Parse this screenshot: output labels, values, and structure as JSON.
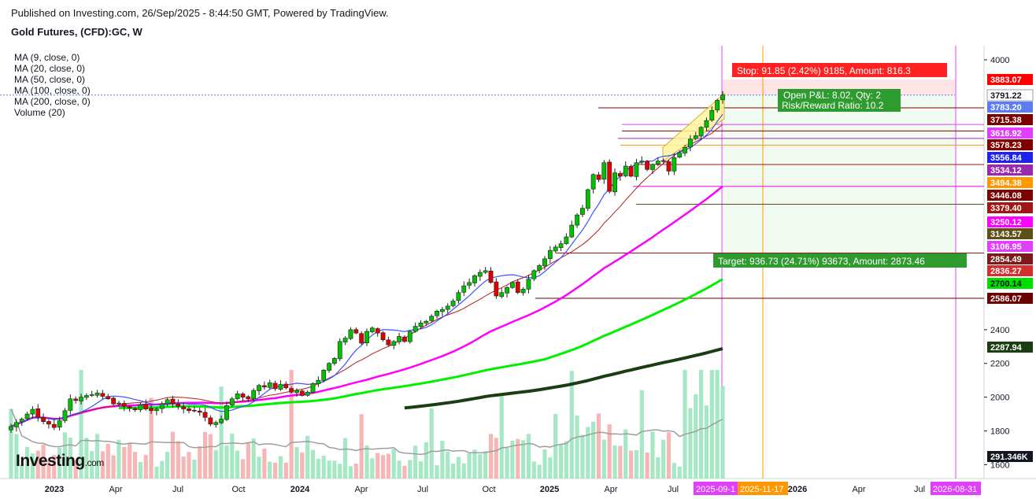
{
  "header": {
    "published": "Published on Investing.com, 26/Sep/2025 - 8:44:50 GMT, Powered by TradingView.",
    "symbol": "Gold Futures, (CFD):GC, W"
  },
  "indicators": [
    "MA (9, close, 0)",
    "MA (20, close, 0)",
    "MA (50, close, 0)",
    "MA (100, close, 0)",
    "MA (200, close, 0)",
    "Volume (20)"
  ],
  "logo": {
    "name": "Investing",
    "suffix": ".com"
  },
  "chart_data": {
    "type": "candlestick",
    "title": "Gold Futures, (CFD):GC, W",
    "y_axis": {
      "side": "right",
      "range": [
        1560,
        4060
      ],
      "ticks": [
        4000,
        2400,
        2200,
        2000,
        1800,
        1600
      ]
    },
    "x_axis": {
      "labels": [
        "2023",
        "Apr",
        "Jul",
        "Oct",
        "2024",
        "Apr",
        "Jul",
        "Oct",
        "2025",
        "Apr",
        "Jul",
        "2026",
        "Apr",
        "Jul"
      ],
      "highlighted_labels": [
        {
          "text": "2025-09-1",
          "bg": "#e040fb"
        },
        {
          "text": "2025-11-17",
          "bg": "#ff9800"
        },
        {
          "text": "2026-08-31",
          "bg": "#e040fb"
        }
      ]
    },
    "price_labels": [
      {
        "value": "3883.07",
        "color": "#ff0000"
      },
      {
        "value": "3791.22",
        "color": "#ffffff",
        "text": "#131722",
        "border": "#9e9e9e"
      },
      {
        "value": "3783.20",
        "color": "#5b7cf2"
      },
      {
        "value": "3715.38",
        "color": "#7b0000"
      },
      {
        "value": "3616.92",
        "color": "#e040fb"
      },
      {
        "value": "3578.23",
        "color": "#800000"
      },
      {
        "value": "3556.84",
        "color": "#1e22f0"
      },
      {
        "value": "3534.12",
        "color": "#9c27b0"
      },
      {
        "value": "3494.38",
        "color": "#ff9800"
      },
      {
        "value": "3446.08",
        "color": "#7b0000"
      },
      {
        "value": "3379.40",
        "color": "#a31515"
      },
      {
        "value": "3250.12",
        "color": "#ff00ff"
      },
      {
        "value": "3143.57",
        "color": "#5d4e1a"
      },
      {
        "value": "3106.95",
        "color": "#e040fb"
      },
      {
        "value": "2854.49",
        "color": "#7a1a1a"
      },
      {
        "value": "2836.27",
        "color": "#d32f2f"
      },
      {
        "value": "2700.14",
        "color": "#00e000",
        "text": "#131722"
      },
      {
        "value": "2586.07",
        "color": "#6b0000"
      },
      {
        "value": "2287.94",
        "color": "#1b3d12"
      },
      {
        "value": "291.346K",
        "color": "#131722"
      }
    ],
    "annotations": {
      "stop": "Stop: 91.85 (2.42%) 9185, Amount: 816.3",
      "pnl": "Open P&L: 8.02, Qty: 2",
      "rr": "Risk/Reward Ratio: 10.2",
      "target": "Target: 936.73 (24.71%) 93673, Amount: 2873.46"
    },
    "position": {
      "entry": 3791.22,
      "stop": 3883.07,
      "target": 2854.49,
      "current": 3783.2
    },
    "horizontal_lines": [
      {
        "value": 3715.38,
        "color": "#7b0000"
      },
      {
        "value": 3616.92,
        "color": "#e040fb"
      },
      {
        "value": 3578.23,
        "color": "#800000"
      },
      {
        "value": 3534.12,
        "color": "#9c27b0"
      },
      {
        "value": 3494.38,
        "color": "#ff9800"
      },
      {
        "value": 3379.4,
        "color": "#a31515"
      },
      {
        "value": 3250.12,
        "color": "#ff00ff"
      },
      {
        "value": 3143.57,
        "color": "#5d4e1a"
      },
      {
        "value": 2854.49,
        "color": "#a31515"
      },
      {
        "value": 2586.07,
        "color": "#6b0000"
      }
    ],
    "weekly_closes": [
      1826,
      1850,
      1870,
      1900,
      1928,
      1880,
      1855,
      1840,
      1820,
      1860,
      1920,
      1990,
      1980,
      2000,
      2010,
      2015,
      2025,
      2005,
      1990,
      1960,
      1965,
      1945,
      1935,
      1925,
      1955,
      1930,
      1920,
      1930,
      1960,
      1985,
      1960,
      1945,
      1930,
      1920,
      1920,
      1910,
      1880,
      1840,
      1850,
      1870,
      1950,
      1990,
      2020,
      2000,
      1990,
      2040,
      2070,
      2060,
      2085,
      2050,
      2075,
      2055,
      2030,
      2040,
      2010,
      2030,
      2080,
      2100,
      2160,
      2200,
      2230,
      2330,
      2350,
      2400,
      2380,
      2320,
      2390,
      2410,
      2380,
      2340,
      2310,
      2330,
      2360,
      2330,
      2390,
      2420,
      2440,
      2450,
      2480,
      2510,
      2520,
      2540,
      2570,
      2620,
      2660,
      2680,
      2720,
      2740,
      2750,
      2680,
      2600,
      2620,
      2650,
      2680,
      2620,
      2640,
      2700,
      2750,
      2780,
      2820,
      2870,
      2890,
      2910,
      2950,
      3020,
      3080,
      3120,
      3230,
      3320,
      3290,
      3390,
      3220,
      3330,
      3310,
      3370,
      3310,
      3390,
      3400,
      3350,
      3380,
      3400,
      3400,
      3340,
      3420,
      3450,
      3480,
      3530,
      3550,
      3600,
      3640,
      3700,
      3760,
      3791
    ],
    "ma20_end": 3616.92,
    "ma50_end": 3250.12,
    "ma100_end": 2700.14,
    "ma200_end": 2287.94,
    "colors": {
      "up": "#00c000",
      "down": "#e00000",
      "vol_up": "#a6e8c5",
      "vol_down": "#f7b6b6",
      "ma9": "#3f51ff",
      "ma20": "#b71c1c",
      "ma50": "#ff00ff",
      "ma100": "#00f000",
      "ma200": "#1b3d12",
      "vol_ma": "#9e9e9e"
    }
  }
}
